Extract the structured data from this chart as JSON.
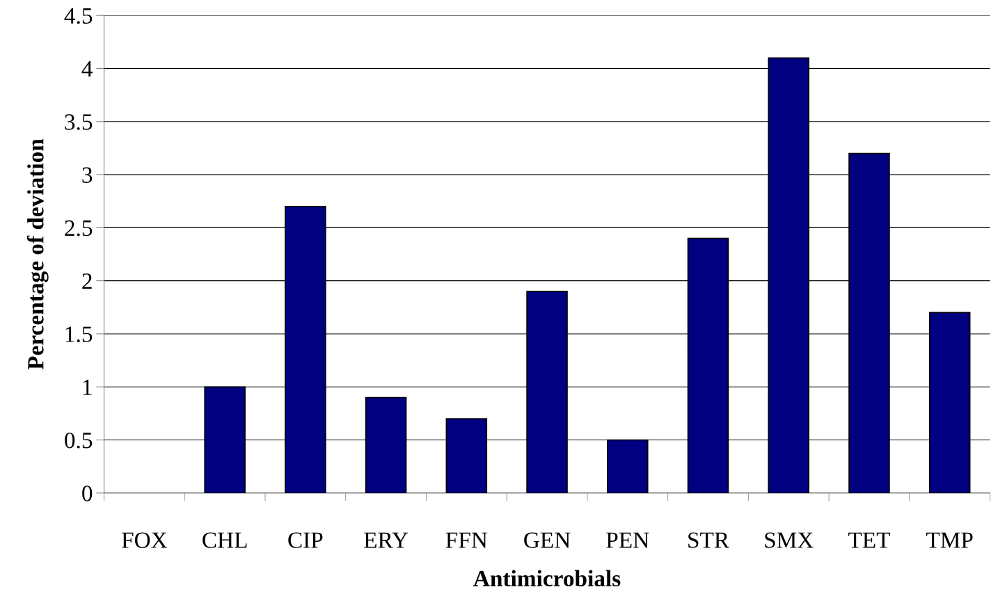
{
  "chart_data": {
    "type": "bar",
    "xlabel": "Antimicrobials",
    "ylabel": "Percentage of deviation",
    "categories": [
      "FOX",
      "CHL",
      "CIP",
      "ERY",
      "FFN",
      "GEN",
      "PEN",
      "STR",
      "SMX",
      "TET",
      "TMP"
    ],
    "values": [
      0,
      1.0,
      2.7,
      0.9,
      0.7,
      1.9,
      0.5,
      2.4,
      4.1,
      3.2,
      1.7
    ],
    "color": "#000080",
    "ylim": [
      0,
      4.5
    ],
    "yticks": [
      0,
      0.5,
      1,
      1.5,
      2,
      2.5,
      3,
      3.5,
      4,
      4.5
    ],
    "grid": "y",
    "legend": false
  }
}
